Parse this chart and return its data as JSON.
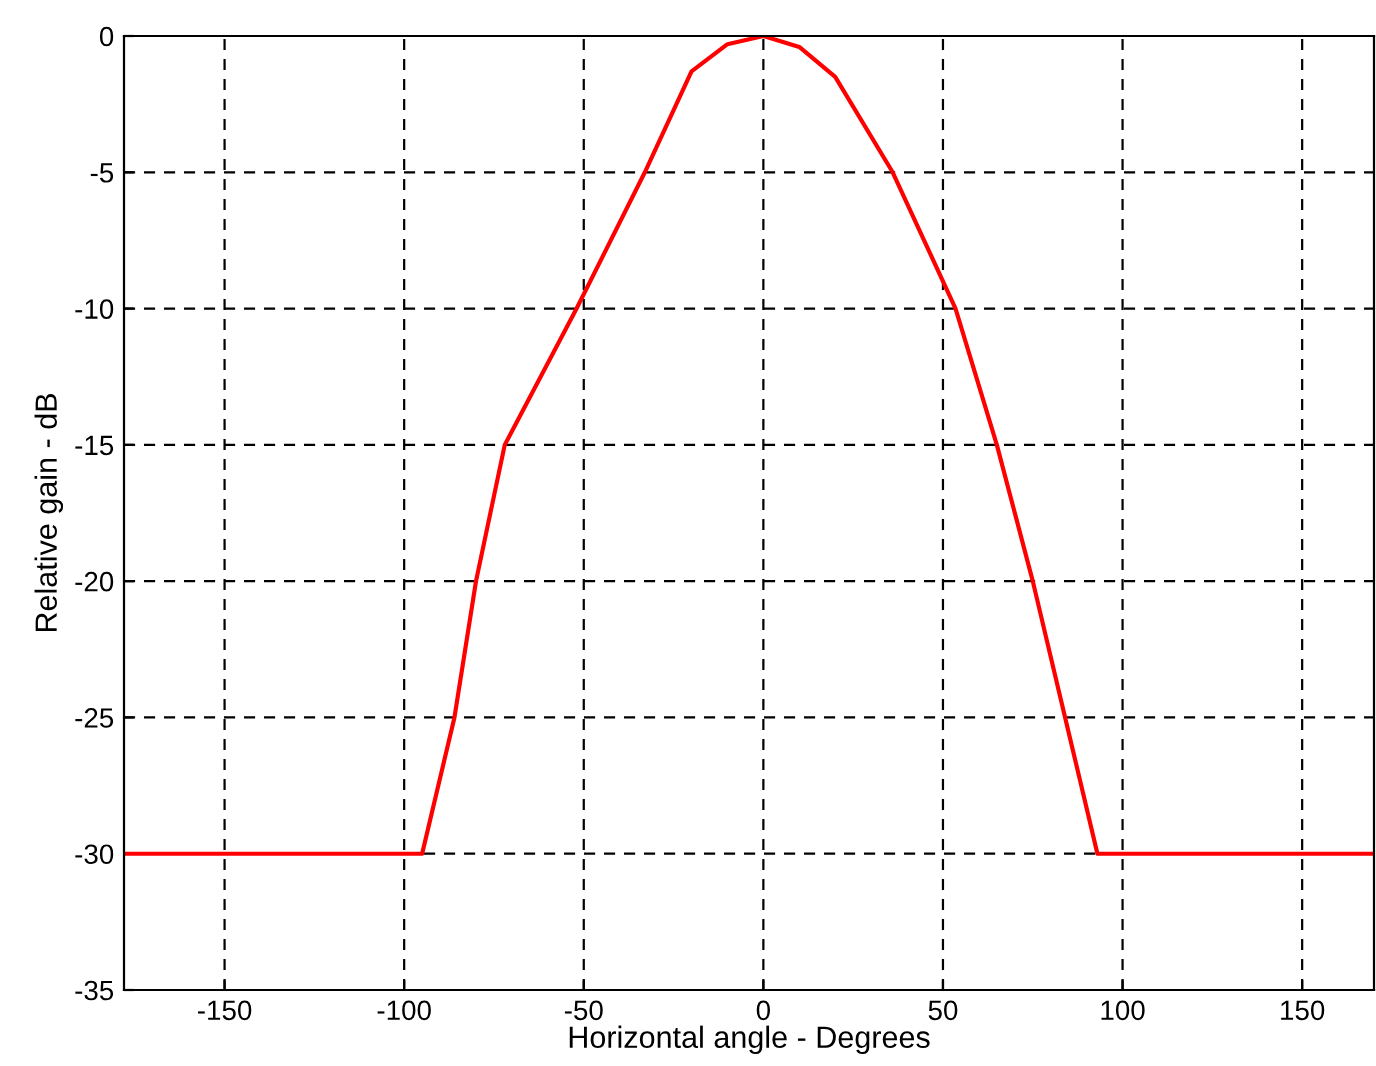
{
  "chart_data": {
    "type": "line",
    "xlabel": "Horizontal angle - Degrees",
    "ylabel": "Relative gain - dB",
    "series": [
      {
        "color": "#ff0000",
        "x": [
          -178,
          -95,
          -86,
          -80,
          -72,
          -52,
          -33,
          -20,
          -10,
          0,
          10,
          20,
          36,
          53.5,
          65,
          75,
          84,
          93,
          170
        ],
        "values": [
          -30,
          -30,
          -25,
          -20,
          -15,
          -10,
          -5,
          -1.3,
          -0.3,
          0,
          -0.4,
          -1.5,
          -5,
          -10,
          -15,
          -20,
          -25,
          -30,
          -30
        ]
      }
    ],
    "xlim": [
      -178,
      170
    ],
    "ylim": [
      -35,
      0
    ],
    "xticks": [
      -150,
      -100,
      -50,
      0,
      50,
      100,
      150
    ],
    "yticks": [
      -35,
      -30,
      -25,
      -20,
      -15,
      -10,
      -5,
      0
    ],
    "grid": true,
    "line_style": "solid",
    "marker": "none"
  }
}
